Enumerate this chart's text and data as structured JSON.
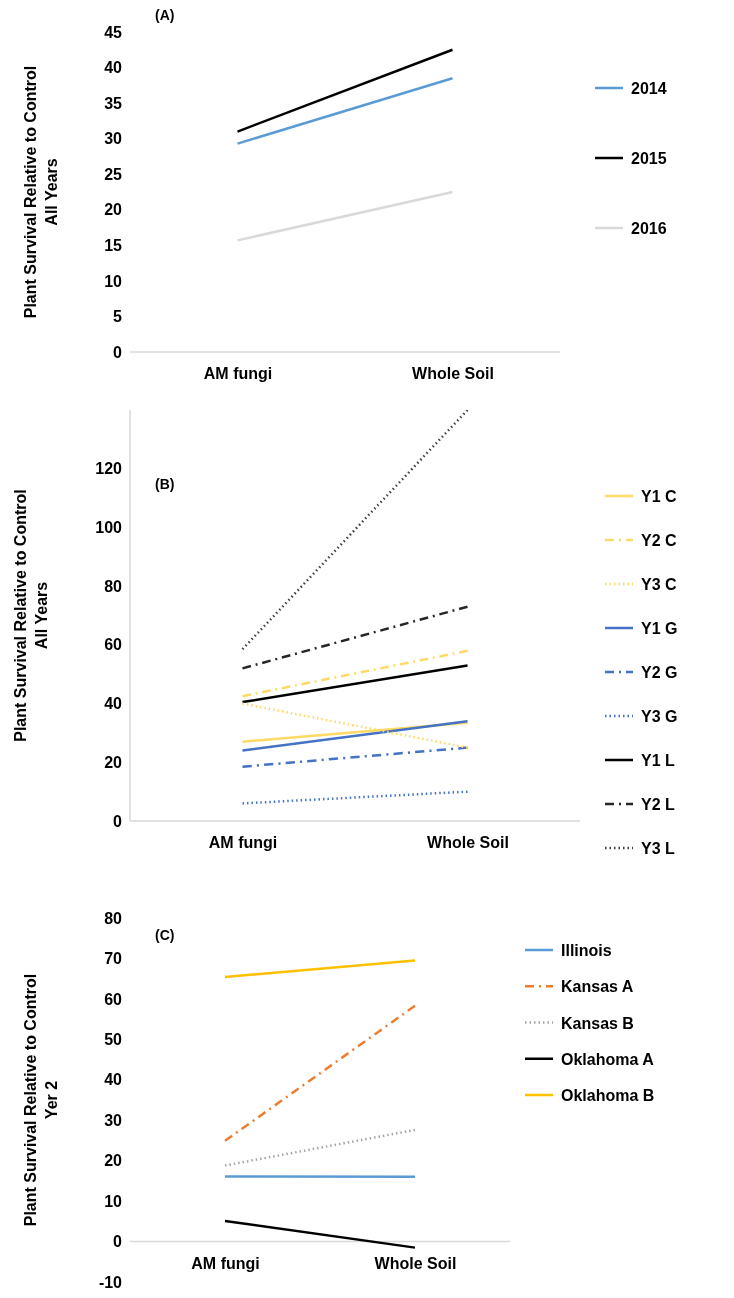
{
  "chart_data": [
    {
      "type": "line",
      "title": "(A)",
      "ylabel": "Plant Survival Relative to Control All Years",
      "categories": [
        "AM fungi",
        "Whole Soil"
      ],
      "ylim": [
        0,
        45
      ],
      "yticks": [
        0,
        5,
        10,
        15,
        20,
        25,
        30,
        35,
        40,
        45
      ],
      "grid": false,
      "legend": "right",
      "marker": "none",
      "series": [
        {
          "name": "2014",
          "color": "#5b9bd5",
          "values": [
            29.3,
            38.5
          ],
          "line_style": "solid"
        },
        {
          "name": "2015",
          "color": "#000000",
          "values": [
            31,
            42.5
          ],
          "line_style": "solid"
        },
        {
          "name": "2016",
          "color": "#d9d9d9",
          "values": [
            15.7,
            22.5
          ],
          "line_style": "solid"
        }
      ]
    },
    {
      "type": "line",
      "title": "(B)",
      "ylabel": "Plant Survival Relative to Control All Years",
      "categories": [
        "AM fungi",
        "Whole Soil"
      ],
      "ylim": [
        0,
        140
      ],
      "yticks": [
        0,
        20,
        40,
        60,
        80,
        100,
        120
      ],
      "grid": false,
      "legend": "right",
      "marker": "none",
      "series": [
        {
          "name": "Y1 C",
          "color": "#ffd966",
          "values": [
            27,
            33.5
          ],
          "line_style": "solid"
        },
        {
          "name": "Y2 C",
          "color": "#ffd966",
          "values": [
            42.5,
            58
          ],
          "line_style": "dashdot"
        },
        {
          "name": "Y3 C",
          "color": "#ffd966",
          "values": [
            40,
            25
          ],
          "line_style": "dotted"
        },
        {
          "name": "Y1 G",
          "color": "#4472c4",
          "values": [
            24,
            34
          ],
          "line_style": "solid"
        },
        {
          "name": "Y2 G",
          "color": "#4472c4",
          "values": [
            18.5,
            25
          ],
          "line_style": "dashdot"
        },
        {
          "name": "Y3 G",
          "color": "#4472c4",
          "values": [
            6,
            10
          ],
          "line_style": "dotted"
        },
        {
          "name": "Y1 L",
          "color": "#000000",
          "values": [
            40.5,
            53
          ],
          "line_style": "solid"
        },
        {
          "name": "Y2 L",
          "color": "#262626",
          "values": [
            52,
            73
          ],
          "line_style": "dashdot"
        },
        {
          "name": "Y3 L",
          "color": "#404040",
          "values": [
            58.5,
            140
          ],
          "line_style": "dotted"
        }
      ]
    },
    {
      "type": "line",
      "title": "(C)",
      "ylabel": "Plant Survival Relative to Control Yer 2",
      "categories": [
        "AM fungi",
        "Whole Soil"
      ],
      "ylim": [
        -10,
        80
      ],
      "yticks": [
        -10,
        0,
        10,
        20,
        30,
        40,
        50,
        60,
        70,
        80
      ],
      "grid": false,
      "legend": "right",
      "marker": "none",
      "series": [
        {
          "name": "Illinois",
          "color": "#5b9bd5",
          "values": [
            16.1,
            16
          ],
          "line_style": "solid"
        },
        {
          "name": "Kansas A",
          "color": "#ed7d31",
          "values": [
            24.9,
            58.3
          ],
          "line_style": "dashdot"
        },
        {
          "name": "Kansas B",
          "color": "#a5a5a5",
          "values": [
            18.8,
            27.6
          ],
          "line_style": "dotted"
        },
        {
          "name": "Oklahoma A",
          "color": "#000000",
          "values": [
            5.1,
            -1.5
          ],
          "line_style": "solid"
        },
        {
          "name": "Oklahoma B",
          "color": "#ffc000",
          "values": [
            65.4,
            69.5
          ],
          "line_style": "solid"
        }
      ]
    }
  ]
}
